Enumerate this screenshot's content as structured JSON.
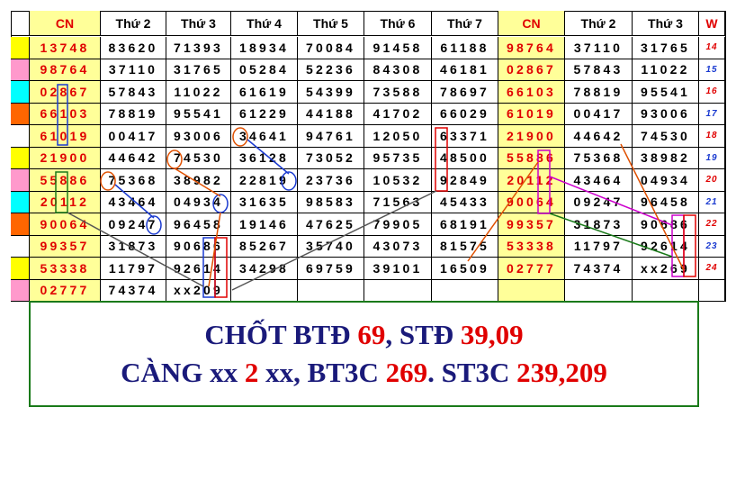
{
  "table": {
    "header": [
      "CN",
      "Thứ 2",
      "Thứ 3",
      "Thứ 4",
      "Thứ 5",
      "Thứ 6",
      "Thứ 7",
      "CN",
      "Thứ 2",
      "Thứ 3",
      "W"
    ],
    "marker_colors": [
      "#ffff00",
      "#ff99cc",
      "#00ffff",
      "#ff6600",
      "#ffffff",
      "#ffff00",
      "#ff99cc",
      "#00ffff",
      "#ff6600",
      "#ffffff",
      "#ffff00",
      "#ff99cc"
    ],
    "rows": [
      [
        "13748",
        "83620",
        "71393",
        "18934",
        "70084",
        "91458",
        "61188",
        "98764",
        "37110",
        "31765",
        "14"
      ],
      [
        "98764",
        "37110",
        "31765",
        "05284",
        "52236",
        "84308",
        "46181",
        "02867",
        "57843",
        "11022",
        "15"
      ],
      [
        "02867",
        "57843",
        "11022",
        "61619",
        "54399",
        "73588",
        "78697",
        "66103",
        "78819",
        "95541",
        "16"
      ],
      [
        "66103",
        "78819",
        "95541",
        "61229",
        "44188",
        "41702",
        "66029",
        "61019",
        "00417",
        "93006",
        "17"
      ],
      [
        "61019",
        "00417",
        "93006",
        "34641",
        "94761",
        "12050",
        "63371",
        "21900",
        "44642",
        "74530",
        "18"
      ],
      [
        "21900",
        "44642",
        "74530",
        "36128",
        "73052",
        "95735",
        "48500",
        "55886",
        "75368",
        "38982",
        "19"
      ],
      [
        "55886",
        "75368",
        "38982",
        "22819",
        "23736",
        "10532",
        "92849",
        "20112",
        "43464",
        "04934",
        "20"
      ],
      [
        "20112",
        "43464",
        "04934",
        "31635",
        "98583",
        "71563",
        "45433",
        "90064",
        "09247",
        "96458",
        "21"
      ],
      [
        "90064",
        "09247",
        "96458",
        "19146",
        "47625",
        "79905",
        "68191",
        "99357",
        "31873",
        "90686",
        "22"
      ],
      [
        "99357",
        "31873",
        "90686",
        "85267",
        "35740",
        "43073",
        "81575",
        "53338",
        "11797",
        "92614",
        "23"
      ],
      [
        "53338",
        "11797",
        "92614",
        "34298",
        "69759",
        "39101",
        "16509",
        "02777",
        "74374",
        "xx269",
        "24"
      ],
      [
        "02777",
        "74374",
        "xx209"
      ]
    ]
  },
  "conclusion": {
    "lines": [
      [
        {
          "text": "CHỐT BTĐ ",
          "color": "#1a1a7a"
        },
        {
          "text": "69",
          "color": "#e00000"
        },
        {
          "text": ", STĐ ",
          "color": "#1a1a7a"
        },
        {
          "text": "39,09",
          "color": "#e00000"
        }
      ],
      [
        {
          "text": "CÀNG xx ",
          "color": "#1a1a7a"
        },
        {
          "text": "2",
          "color": "#e00000"
        },
        {
          "text": " xx, BT3C ",
          "color": "#1a1a7a"
        },
        {
          "text": "269",
          "color": "#e00000"
        },
        {
          "text": ". ST3C ",
          "color": "#1a1a7a"
        },
        {
          "text": "239,209",
          "color": "#e00000"
        }
      ]
    ]
  }
}
